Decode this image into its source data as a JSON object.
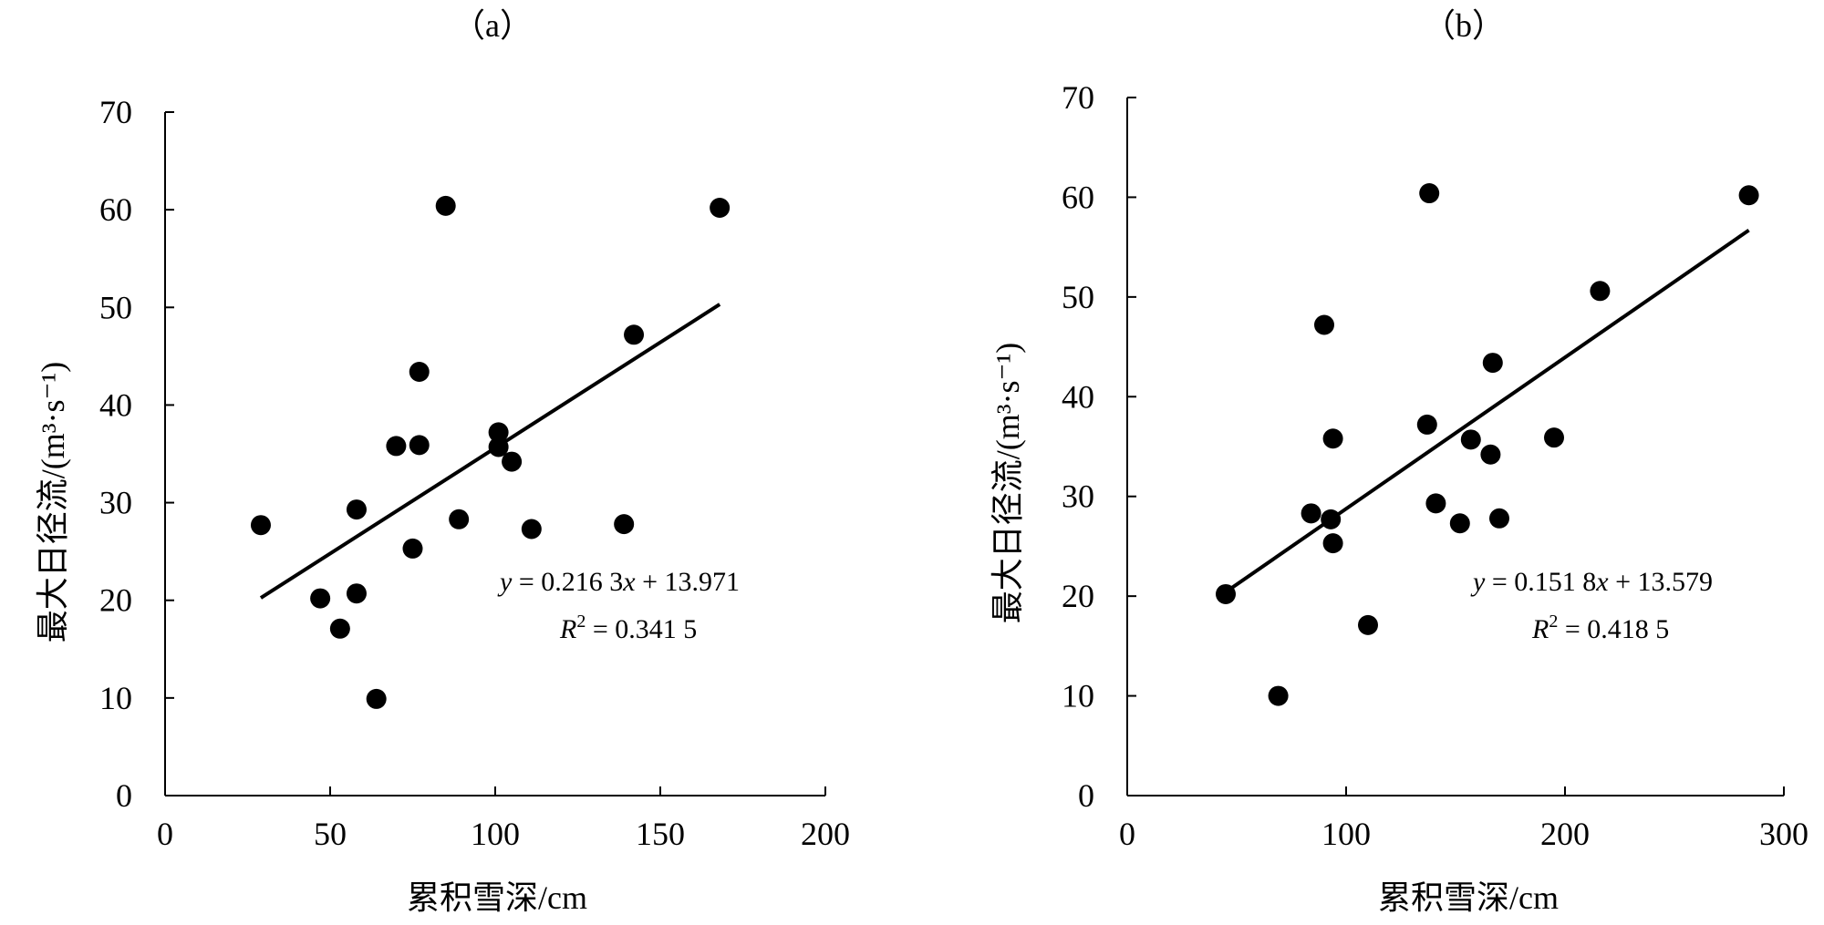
{
  "chart_data": [
    {
      "type": "scatter",
      "panel_label": "（a）",
      "xlabel": "累积雪深/cm",
      "ylabel": "最大日径流/(m³·s⁻¹)",
      "xlim": [
        0,
        200
      ],
      "ylim": [
        0,
        70
      ],
      "xticks": [
        0,
        50,
        100,
        150,
        200
      ],
      "yticks": [
        0,
        10,
        20,
        30,
        40,
        50,
        60,
        70
      ],
      "points": [
        {
          "x": 29,
          "y": 27.7
        },
        {
          "x": 47,
          "y": 20.2
        },
        {
          "x": 53,
          "y": 17.1
        },
        {
          "x": 58,
          "y": 29.3
        },
        {
          "x": 58,
          "y": 20.7
        },
        {
          "x": 64,
          "y": 9.9
        },
        {
          "x": 70,
          "y": 35.8
        },
        {
          "x": 75,
          "y": 25.3
        },
        {
          "x": 77,
          "y": 43.4
        },
        {
          "x": 77,
          "y": 35.9
        },
        {
          "x": 85,
          "y": 60.4
        },
        {
          "x": 89,
          "y": 28.3
        },
        {
          "x": 101,
          "y": 37.2
        },
        {
          "x": 101,
          "y": 35.7
        },
        {
          "x": 105,
          "y": 34.2
        },
        {
          "x": 111,
          "y": 27.3
        },
        {
          "x": 139,
          "y": 27.8
        },
        {
          "x": 142,
          "y": 47.2
        },
        {
          "x": 168,
          "y": 60.2
        }
      ],
      "trendline": {
        "slope": 0.2163,
        "intercept": 13.971,
        "x_range": [
          29,
          168
        ]
      },
      "equation": {
        "y": "y",
        "equals_a": " = 0.216 3",
        "x": "x",
        "rest_a": " + 13.971",
        "r": "R",
        "sup": "2",
        "rest_b": " = 0.341 5"
      }
    },
    {
      "type": "scatter",
      "panel_label": "（b）",
      "xlabel": "累积雪深/cm",
      "ylabel": "最大日径流/(m³·s⁻¹)",
      "xlim": [
        0,
        300
      ],
      "ylim": [
        0,
        70
      ],
      "xticks": [
        0,
        100,
        200,
        300
      ],
      "yticks": [
        0,
        10,
        20,
        30,
        40,
        50,
        60,
        70
      ],
      "points": [
        {
          "x": 45,
          "y": 20.2
        },
        {
          "x": 69,
          "y": 10.0
        },
        {
          "x": 84,
          "y": 28.3
        },
        {
          "x": 90,
          "y": 47.2
        },
        {
          "x": 93,
          "y": 27.7
        },
        {
          "x": 94,
          "y": 35.8
        },
        {
          "x": 94,
          "y": 25.3
        },
        {
          "x": 110,
          "y": 17.1
        },
        {
          "x": 137,
          "y": 37.2
        },
        {
          "x": 138,
          "y": 60.4
        },
        {
          "x": 141,
          "y": 29.3
        },
        {
          "x": 152,
          "y": 27.3
        },
        {
          "x": 157,
          "y": 35.7
        },
        {
          "x": 166,
          "y": 34.2
        },
        {
          "x": 167,
          "y": 43.4
        },
        {
          "x": 170,
          "y": 27.8
        },
        {
          "x": 195,
          "y": 35.9
        },
        {
          "x": 216,
          "y": 50.6
        },
        {
          "x": 284,
          "y": 60.2
        }
      ],
      "trendline": {
        "slope": 0.1518,
        "intercept": 13.579,
        "x_range": [
          45,
          284
        ]
      },
      "equation": {
        "y": "y",
        "equals_a": " = 0.151 8",
        "x": "x",
        "rest_a": " + 13.579",
        "r": "R",
        "sup": "2",
        "rest_b": " = 0.418 5"
      }
    }
  ]
}
